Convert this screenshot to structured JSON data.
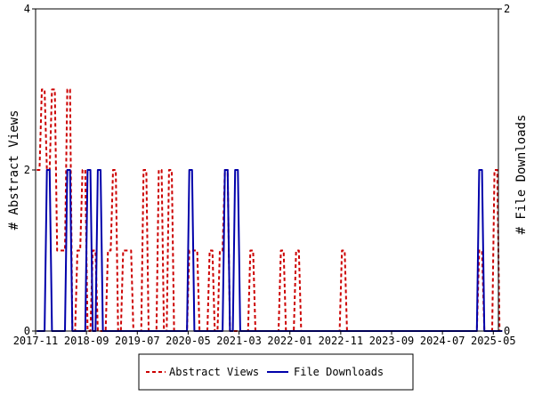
{
  "chart_data": {
    "type": "line",
    "xlabel": "",
    "ylabel_left": "# Abstract Views",
    "ylabel_right": "# File Downloads",
    "x_start": "2017-11",
    "x_end": "2025-06",
    "ylim_left": [
      0,
      4
    ],
    "ylim_right": [
      0,
      2
    ],
    "yticks_left": [
      0,
      2,
      4
    ],
    "yticks_right": [
      0,
      2
    ],
    "xtick_labels": [
      "2017-11",
      "2018-09",
      "2019-07",
      "2020-05",
      "2021-03",
      "2022-01",
      "2022-11",
      "2023-09",
      "2024-07",
      "2025-05"
    ],
    "grid": false,
    "legend": {
      "placement": "bottom"
    },
    "months": [
      "2017-11",
      "2017-12",
      "2018-01",
      "2018-02",
      "2018-03",
      "2018-04",
      "2018-05",
      "2018-06",
      "2018-07",
      "2018-08",
      "2018-09",
      "2018-10",
      "2018-11",
      "2018-12",
      "2019-01",
      "2019-02",
      "2019-03",
      "2019-04",
      "2019-05",
      "2019-06",
      "2019-07",
      "2019-08",
      "2019-09",
      "2019-10",
      "2019-11",
      "2019-12",
      "2020-01",
      "2020-02",
      "2020-03",
      "2020-04",
      "2020-05",
      "2020-06",
      "2020-07",
      "2020-08",
      "2020-09",
      "2020-10",
      "2020-11",
      "2020-12",
      "2021-01",
      "2021-02",
      "2021-03",
      "2021-04",
      "2021-05",
      "2021-06",
      "2021-07",
      "2021-08",
      "2021-09",
      "2021-10",
      "2021-11",
      "2021-12",
      "2022-01",
      "2022-02",
      "2022-03",
      "2022-04",
      "2022-05",
      "2022-06",
      "2022-07",
      "2022-08",
      "2022-09",
      "2022-10",
      "2022-11",
      "2022-12",
      "2023-01",
      "2023-02",
      "2023-03",
      "2023-04",
      "2023-05",
      "2023-06",
      "2023-07",
      "2023-08",
      "2023-09",
      "2023-10",
      "2023-11",
      "2023-12",
      "2024-01",
      "2024-02",
      "2024-03",
      "2024-04",
      "2024-05",
      "2024-06",
      "2024-07",
      "2024-08",
      "2024-09",
      "2024-10",
      "2024-11",
      "2024-12",
      "2025-01",
      "2025-02",
      "2025-03",
      "2025-04",
      "2025-05",
      "2025-06"
    ],
    "series": [
      {
        "name": "Abstract Views",
        "axis": "left",
        "color": "#cc0000",
        "dash": true,
        "values": [
          2,
          3,
          2,
          3,
          1,
          1,
          3,
          0,
          1,
          2,
          0,
          1,
          0,
          0,
          1,
          2,
          0,
          1,
          1,
          0,
          0,
          2,
          0,
          0,
          2,
          0,
          2,
          0,
          0,
          0,
          1,
          1,
          0,
          0,
          1,
          0,
          1,
          2,
          0,
          0,
          0,
          0,
          1,
          0,
          0,
          0,
          0,
          0,
          1,
          0,
          0,
          1,
          0,
          0,
          0,
          0,
          0,
          0,
          0,
          0,
          1,
          0,
          0,
          0,
          0,
          0,
          0,
          0,
          0,
          0,
          0,
          0,
          0,
          0,
          0,
          0,
          0,
          0,
          0,
          0,
          0,
          0,
          0,
          0,
          0,
          0,
          0,
          1,
          0,
          0,
          2,
          0
        ]
      },
      {
        "name": "File Downloads",
        "axis": "right",
        "color": "#0000aa",
        "dash": false,
        "values": [
          0,
          0,
          1,
          0,
          0,
          0,
          1,
          0,
          0,
          0,
          1,
          0,
          1,
          0,
          0,
          0,
          0,
          0,
          0,
          0,
          0,
          0,
          0,
          0,
          0,
          0,
          0,
          0,
          0,
          0,
          1,
          0,
          0,
          0,
          0,
          0,
          0,
          1,
          0,
          1,
          0,
          0,
          0,
          0,
          0,
          0,
          0,
          0,
          0,
          0,
          0,
          0,
          0,
          0,
          0,
          0,
          0,
          0,
          0,
          0,
          0,
          0,
          0,
          0,
          0,
          0,
          0,
          0,
          0,
          0,
          0,
          0,
          0,
          0,
          0,
          0,
          0,
          0,
          0,
          0,
          0,
          0,
          0,
          0,
          0,
          0,
          0,
          1,
          0,
          0,
          0,
          0
        ]
      }
    ]
  }
}
